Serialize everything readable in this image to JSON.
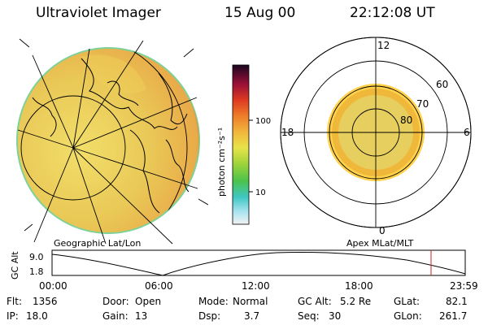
{
  "header": {
    "title": "Ultraviolet Imager",
    "date": "15 Aug 00",
    "time": "22:12:08 UT"
  },
  "colorbar": {
    "unit": "photon cm⁻²s⁻¹",
    "ticks": [
      "100",
      "10"
    ]
  },
  "captions": {
    "left": "Geographic Lat/Lon",
    "right": "Apex MLat/MLT"
  },
  "polar": {
    "mlt_labels": [
      "12",
      "18",
      "6",
      "0"
    ],
    "lat_labels": [
      "60",
      "70",
      "80"
    ]
  },
  "altplot": {
    "axis_label": "GC Alt",
    "y_ticks": [
      "9.0",
      "1.8"
    ],
    "x_ticks": [
      "00:00",
      "06:00",
      "12:00",
      "18:00",
      "23:59"
    ]
  },
  "info": {
    "row1": {
      "flt_label": "Flt:",
      "flt_value": "1356",
      "door_label": "Door:",
      "door_value": "Open",
      "mode_label": "Mode:",
      "mode_value": "Normal",
      "gcalt_label": "GC Alt:",
      "gcalt_value": "5.2 Re",
      "glat_label": "GLat:",
      "glat_value": "82.1"
    },
    "row2": {
      "ip_label": "IP:",
      "ip_value": "18.0",
      "gain_label": "Gain:",
      "gain_value": "13",
      "dsp_label": "Dsp:",
      "dsp_value": "3.7",
      "seq_label": "Seq:",
      "seq_value": "30",
      "glon_label": "GLon:",
      "glon_value": "261.7"
    }
  },
  "colors": {
    "accent_red": "#cc2222",
    "ring_fill": "#f0b83a",
    "disk_fill": "#e6cf5e"
  }
}
